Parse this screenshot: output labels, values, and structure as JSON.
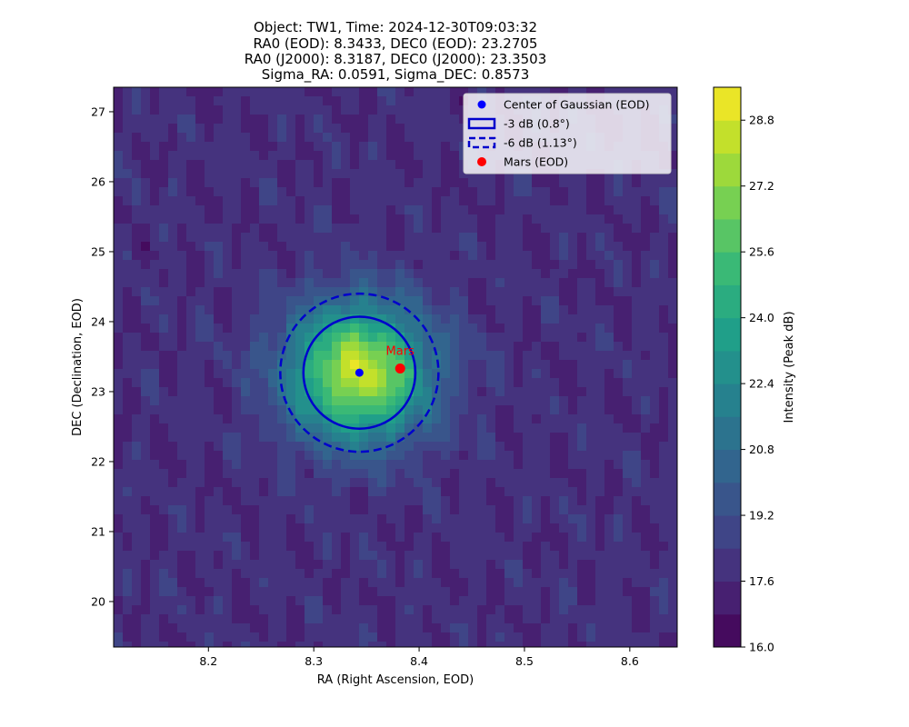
{
  "chart_data": {
    "type": "contour",
    "title_lines": [
      "Object: TW1, Time: 2024-12-30T09:03:32",
      "RA0 (EOD): 8.3433, DEC0 (EOD): 23.2705",
      "RA0 (J2000): 8.3187, DEC0 (J2000): 23.3503",
      "Sigma_RA: 0.0591, Sigma_DEC: 0.8573"
    ],
    "xlabel": "RA (Right Ascension, EOD)",
    "ylabel": "DEC (Declination, EOD)",
    "xlim": [
      8.11,
      8.645
    ],
    "ylim": [
      19.35,
      27.35
    ],
    "xticks": [
      8.2,
      8.3,
      8.4,
      8.5,
      8.6
    ],
    "yticks": [
      20,
      21,
      22,
      23,
      24,
      25,
      26,
      27
    ],
    "colorbar": {
      "label": "Intensity (Peak dB)",
      "min": 16.0,
      "max": 29.6,
      "levels": [
        16.0,
        16.8,
        17.6,
        18.4,
        19.2,
        20.0,
        20.8,
        21.6,
        22.4,
        23.2,
        24.0,
        24.8,
        25.6,
        26.4,
        27.2,
        28.0,
        28.8,
        29.6
      ],
      "tick_values": [
        16.0,
        17.6,
        19.2,
        20.8,
        22.4,
        24.0,
        25.6,
        27.2,
        28.8
      ],
      "tick_labels": [
        "16.0",
        "17.6",
        "19.2",
        "20.8",
        "22.4",
        "24.0",
        "25.6",
        "27.2",
        "28.8"
      ]
    },
    "gaussian": {
      "ra0": 8.3433,
      "dec0": 23.2705,
      "peak_db": 28.4,
      "background_db": 17.8
    },
    "circles": [
      {
        "name": "-3 dB (0.8°)",
        "radius_deg": 0.8,
        "style": "solid",
        "color": "#0000cc"
      },
      {
        "name": "-6 dB (1.13°)",
        "radius_deg": 1.13,
        "style": "dashed",
        "color": "#0000cc"
      }
    ],
    "center_marker": {
      "name": "Center of Gaussian (EOD)",
      "ra": 8.3433,
      "dec": 23.2705,
      "color": "#0000ff"
    },
    "target": {
      "name": "Mars (EOD)",
      "label": "Mars",
      "ra": 8.382,
      "dec": 23.33,
      "color": "#ff0000"
    },
    "legend": {
      "placement": "top-right",
      "entries": [
        "Center of Gaussian (EOD)",
        "-3 dB (0.8°)",
        "-6 dB (1.13°)",
        "Mars (EOD)"
      ]
    }
  }
}
